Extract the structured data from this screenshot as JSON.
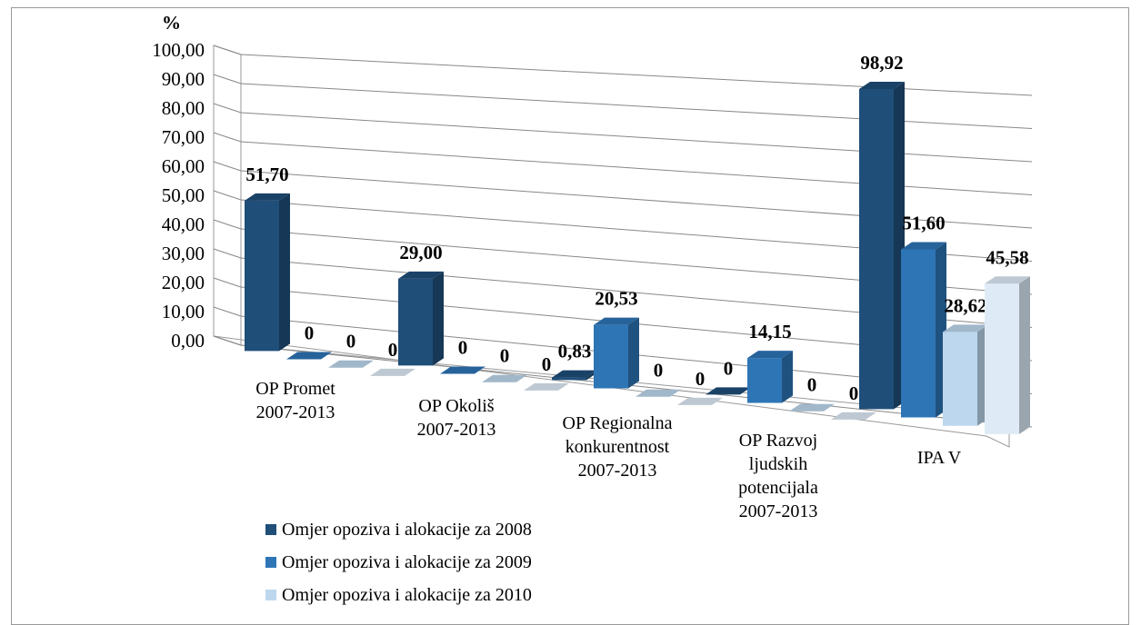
{
  "chart_data": {
    "type": "bar3d",
    "y_label": "%",
    "categories": [
      "OP Promet\n2007-2013",
      "OP Okoliš\n2007-2013",
      "OP Regionalna\nkonkurentnost\n2007-2013",
      "OP Razvoj\nljudskih\npotencijala\n2007-2013",
      "IPA V"
    ],
    "series": [
      {
        "name": "Omjer opoziva i alokacije za 2008",
        "color": "#1f4e79",
        "values": [
          51.7,
          29.0,
          0.83,
          0,
          98.92
        ],
        "value_labels": [
          "51,70",
          "29,00",
          "0,83",
          "0",
          "98,92"
        ]
      },
      {
        "name": "Omjer opoziva i alokacije za 2009",
        "color": "#2e75b6",
        "values": [
          0,
          0,
          20.53,
          14.15,
          51.6
        ],
        "value_labels": [
          "0",
          "0",
          "20,53",
          "14,15",
          "51,60"
        ]
      },
      {
        "name": "Omjer opoziva i alokacije za 2010",
        "color": "#bdd7ee",
        "values": [
          0,
          0,
          0,
          0,
          28.62
        ],
        "value_labels": [
          "0",
          "0",
          "0",
          "0",
          "28,62"
        ]
      },
      {
        "color": "#deebf7",
        "values": [
          0,
          0,
          0,
          0,
          45.58
        ],
        "value_labels": [
          "0",
          "0",
          "0",
          "0",
          "45,58"
        ]
      }
    ],
    "ylim": [
      0,
      100
    ],
    "yticks": [
      {
        "value": 0,
        "label": "0,00"
      },
      {
        "value": 10,
        "label": "10,00"
      },
      {
        "value": 20,
        "label": "20,00"
      },
      {
        "value": 30,
        "label": "30,00"
      },
      {
        "value": 40,
        "label": "40,00"
      },
      {
        "value": 50,
        "label": "50,00"
      },
      {
        "value": 60,
        "label": "60,00"
      },
      {
        "value": 70,
        "label": "70,00"
      },
      {
        "value": 80,
        "label": "80,00"
      },
      {
        "value": 90,
        "label": "90,00"
      },
      {
        "value": 100,
        "label": "100,00"
      }
    ],
    "grid": true,
    "legend": "bottom-left"
  }
}
